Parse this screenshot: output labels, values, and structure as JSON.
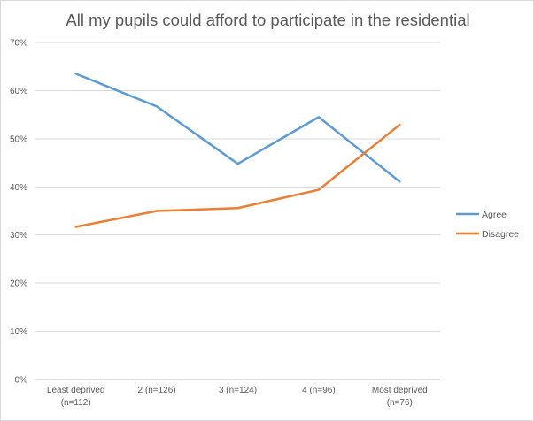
{
  "chart_data": {
    "type": "line",
    "title": "All my pupils could afford to participate in the residential",
    "categories": [
      "Least deprived (n=112)",
      "2 (n=126)",
      "3 (n=124)",
      "4 (n=96)",
      "Most deprived (n=76)"
    ],
    "category_lines": [
      [
        "Least deprived",
        "(n=112)"
      ],
      [
        "2 (n=126)"
      ],
      [
        "3 (n=124)"
      ],
      [
        "4 (n=96)"
      ],
      [
        "Most deprived",
        "(n=76)"
      ]
    ],
    "y_ticks": [
      "0%",
      "10%",
      "20%",
      "30%",
      "40%",
      "50%",
      "60%",
      "70%"
    ],
    "ylim": [
      0,
      70
    ],
    "grid": true,
    "legend_position": "right",
    "series": [
      {
        "name": "Agree",
        "color": "#5b9bd5",
        "values": [
          63.5,
          56.7,
          44.8,
          54.5,
          41.1
        ]
      },
      {
        "name": "Disagree",
        "color": "#ed7d31",
        "values": [
          31.7,
          35.0,
          35.6,
          39.4,
          52.9
        ]
      }
    ]
  }
}
